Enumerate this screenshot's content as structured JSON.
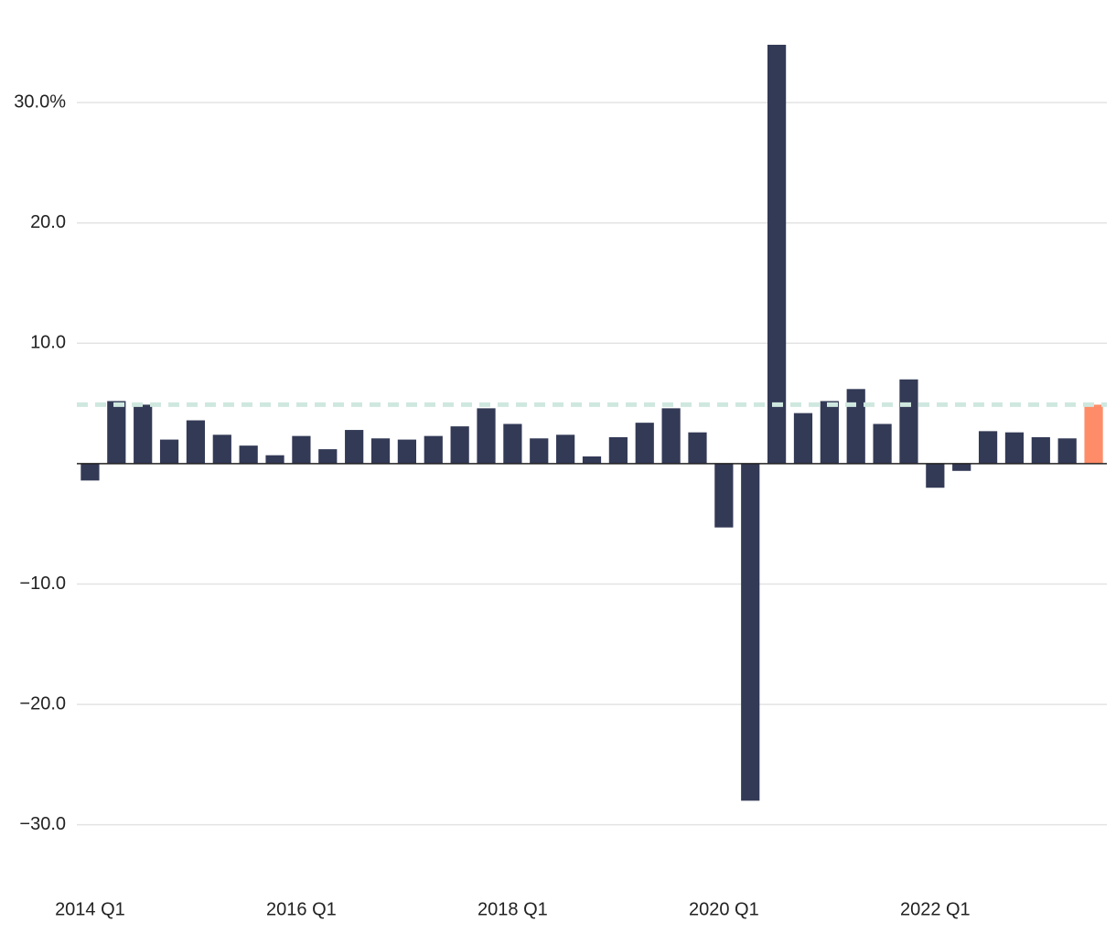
{
  "chart_data": {
    "type": "bar",
    "categories": [
      "2014 Q1",
      null,
      null,
      null,
      null,
      null,
      null,
      null,
      "2016 Q1",
      null,
      null,
      null,
      null,
      null,
      null,
      null,
      "2018 Q1",
      null,
      null,
      null,
      null,
      null,
      null,
      null,
      "2020 Q1",
      null,
      null,
      null,
      null,
      null,
      null,
      null,
      "2022 Q1",
      null,
      null,
      null,
      null,
      null,
      null
    ],
    "values": [
      -1.4,
      5.2,
      4.9,
      2.0,
      3.6,
      2.4,
      1.5,
      0.7,
      2.3,
      1.2,
      2.8,
      2.1,
      2.0,
      2.3,
      3.1,
      4.6,
      3.3,
      2.1,
      2.4,
      0.6,
      2.2,
      3.4,
      4.6,
      2.6,
      -5.3,
      -28.0,
      34.8,
      4.2,
      5.2,
      6.2,
      3.3,
      7.0,
      -2.0,
      -0.6,
      2.7,
      2.6,
      2.2,
      2.1,
      4.9
    ],
    "colors": [
      "#333a56",
      "#333a56",
      "#333a56",
      "#333a56",
      "#333a56",
      "#333a56",
      "#333a56",
      "#333a56",
      "#333a56",
      "#333a56",
      "#333a56",
      "#333a56",
      "#333a56",
      "#333a56",
      "#333a56",
      "#333a56",
      "#333a56",
      "#333a56",
      "#333a56",
      "#333a56",
      "#333a56",
      "#333a56",
      "#333a56",
      "#333a56",
      "#333a56",
      "#333a56",
      "#333a56",
      "#333a56",
      "#333a56",
      "#333a56",
      "#333a56",
      "#333a56",
      "#333a56",
      "#333a56",
      "#333a56",
      "#333a56",
      "#333a56",
      "#333a56",
      "#ff8c69"
    ],
    "reference_line": {
      "value": 4.9,
      "color": "#cfe8df"
    },
    "ylim": [
      -32,
      37
    ],
    "yticks": [
      {
        "value": 30,
        "label": "30.0%"
      },
      {
        "value": 20,
        "label": "20.0"
      },
      {
        "value": 10,
        "label": "10.0"
      },
      {
        "value": -10,
        "label": "−10.0"
      },
      {
        "value": -20,
        "label": "−20.0"
      },
      {
        "value": -30,
        "label": "−30.0"
      }
    ],
    "grid": true
  }
}
